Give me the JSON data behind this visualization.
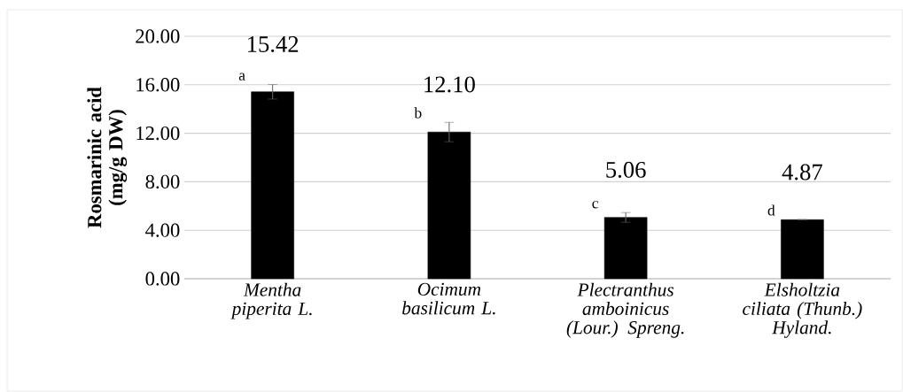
{
  "chart_data": {
    "type": "bar",
    "ylabel": "Rosmarinic acid (mg/g DW)",
    "categories": [
      "Mentha piperita L.",
      "Ocimum basilicum L.",
      "Plectranthus amboinicus (Lour.) Spreng.",
      "Elsholtzia ciliata (Thunb.) Hyland."
    ],
    "values": [
      15.42,
      12.1,
      5.06,
      4.87
    ],
    "errors": [
      0.6,
      0.8,
      0.4,
      null
    ],
    "value_labels": [
      "15.42",
      "12.10",
      "5.06",
      "4.87"
    ],
    "color": "#000000",
    "ylim": [
      0,
      20
    ],
    "yticks": [
      {
        "value": 0,
        "label": "0.00"
      },
      {
        "value": 4,
        "label": "4.00"
      },
      {
        "value": 8,
        "label": "8.00"
      },
      {
        "value": 12,
        "label": "12.00"
      },
      {
        "value": 16,
        "label": "16.00"
      },
      {
        "value": 20,
        "label": "20.00"
      }
    ],
    "grid": "y",
    "annotations": [
      "a",
      "b",
      "c",
      "d"
    ]
  }
}
